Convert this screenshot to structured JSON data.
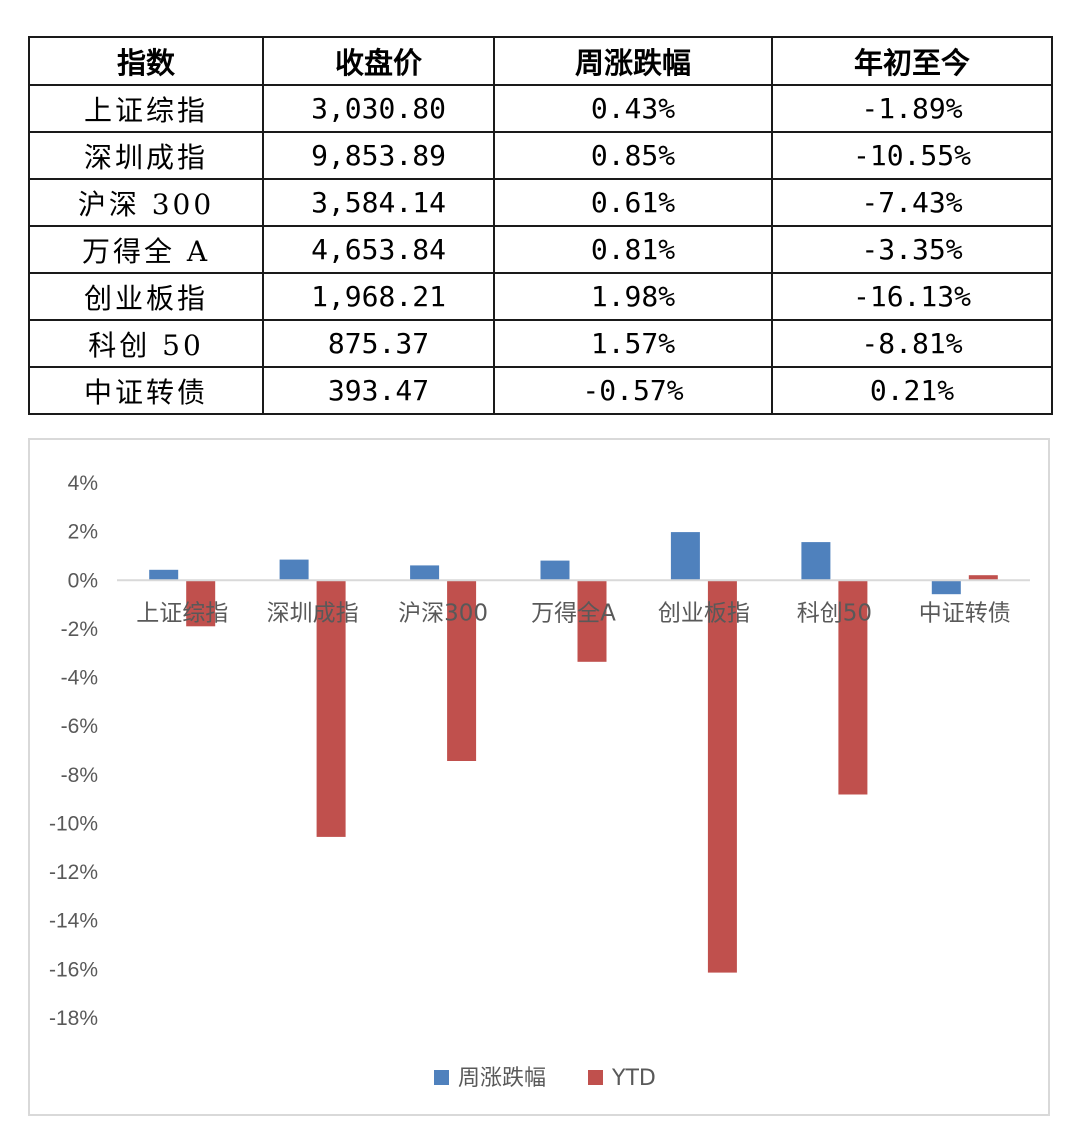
{
  "table": {
    "headers": [
      "指数",
      "收盘价",
      "周涨跌幅",
      "年初至今"
    ],
    "rows": [
      {
        "name": "上证综指",
        "close": "3,030.80",
        "weekly": "0.43%",
        "ytd": "-1.89%"
      },
      {
        "name": "深圳成指",
        "close": "9,853.89",
        "weekly": "0.85%",
        "ytd": "-10.55%"
      },
      {
        "name": "沪深 300",
        "close": "3,584.14",
        "weekly": "0.61%",
        "ytd": "-7.43%"
      },
      {
        "name": "万得全 A",
        "close": "4,653.84",
        "weekly": "0.81%",
        "ytd": "-3.35%"
      },
      {
        "name": "创业板指",
        "close": "1,968.21",
        "weekly": "1.98%",
        "ytd": "-16.13%"
      },
      {
        "name": "科创 50",
        "close": "875.37",
        "weekly": "1.57%",
        "ytd": "-8.81%"
      },
      {
        "name": "中证转债",
        "close": "393.47",
        "weekly": "-0.57%",
        "ytd": "0.21%"
      }
    ]
  },
  "chart_data": {
    "type": "bar",
    "categories": [
      "上证综指",
      "深圳成指",
      "沪深300",
      "万得全A",
      "创业板指",
      "科创50",
      "中证转债"
    ],
    "series": [
      {
        "name": "周涨跌幅",
        "color": "#4f81bd",
        "values": [
          0.43,
          0.85,
          0.61,
          0.81,
          1.98,
          1.57,
          -0.57
        ]
      },
      {
        "name": "YTD",
        "color": "#c0504d",
        "values": [
          -1.89,
          -10.55,
          -7.43,
          -3.35,
          -16.13,
          -8.81,
          0.21
        ]
      }
    ],
    "ylim": [
      -18,
      4
    ],
    "yticks": [
      4,
      2,
      0,
      -2,
      -4,
      -6,
      -8,
      -10,
      -12,
      -14,
      -16,
      -18
    ],
    "ytick_labels": [
      "4%",
      "2%",
      "0%",
      "-2%",
      "-4%",
      "-6%",
      "-8%",
      "-10%",
      "-12%",
      "-14%",
      "-16%",
      "-18%"
    ],
    "legend_position": "bottom",
    "grid": false
  }
}
